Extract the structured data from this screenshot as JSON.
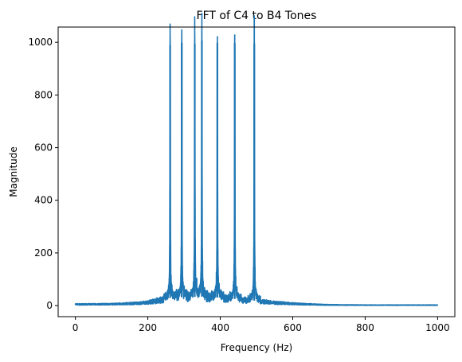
{
  "chart_data": {
    "type": "line",
    "title": "FFT of C4 to B4 Tones",
    "xlabel": "Frequency (Hz)",
    "ylabel": "Magnitude",
    "xlim": [
      -47.5,
      1047.5
    ],
    "ylim": [
      -42,
      1058
    ],
    "xticks": [
      0,
      200,
      400,
      600,
      800,
      1000
    ],
    "yticks": [
      0,
      200,
      400,
      600,
      800,
      1000
    ],
    "grid": false,
    "legend": "none",
    "series": [
      {
        "color": "#1f77b4",
        "baseline": [
          [
            0,
            5
          ],
          [
            100,
            6
          ],
          [
            180,
            10
          ],
          [
            220,
            18
          ],
          [
            250,
            28
          ],
          [
            300,
            32
          ],
          [
            350,
            34
          ],
          [
            400,
            30
          ],
          [
            450,
            24
          ],
          [
            500,
            18
          ],
          [
            550,
            12
          ],
          [
            600,
            8
          ],
          [
            650,
            5
          ],
          [
            700,
            3
          ],
          [
            800,
            2
          ],
          [
            1000,
            2
          ]
        ],
        "peaks": [
          {
            "freq": 261.6,
            "magnitude": 990
          },
          {
            "freq": 293.7,
            "magnitude": 998
          },
          {
            "freq": 329.6,
            "magnitude": 995
          },
          {
            "freq": 349.2,
            "magnitude": 1007
          },
          {
            "freq": 392.0,
            "magnitude": 998
          },
          {
            "freq": 440.0,
            "magnitude": 997
          },
          {
            "freq": 493.9,
            "magnitude": 995
          }
        ]
      }
    ]
  }
}
